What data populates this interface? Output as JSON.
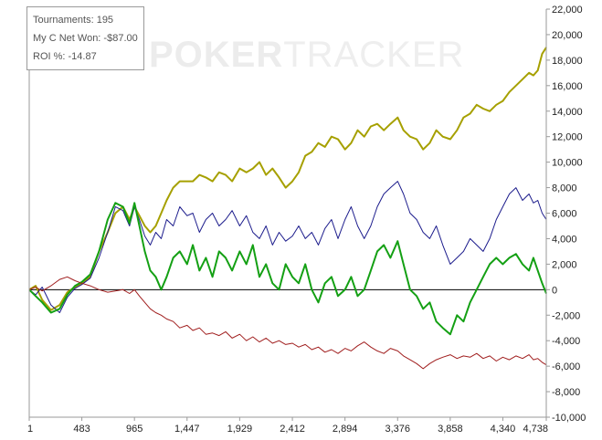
{
  "watermark": {
    "brand_bold": "POKER",
    "brand_light": "TRACKER"
  },
  "info": {
    "tournaments": "Tournaments: 195",
    "net_won": "My C Net Won: -$87.00",
    "roi": "ROI %: -14.87"
  },
  "colors": {
    "olive": "#a6a000",
    "navy": "#1c1c8c",
    "green": "#14a014",
    "darkred": "#a01e1e",
    "zero_line": "#000000",
    "axis": "#9a9a9a"
  },
  "chart_data": {
    "type": "line",
    "xlim": [
      1,
      4738
    ],
    "ylim": [
      -10000,
      22000
    ],
    "x_ticks": [
      1,
      483,
      965,
      1447,
      1929,
      2412,
      2894,
      3376,
      3858,
      4340,
      4738
    ],
    "x_tick_labels": [
      "1",
      "483",
      "965",
      "1,447",
      "1,929",
      "2,412",
      "2,894",
      "3,376",
      "3,858",
      "4,340",
      "4,738"
    ],
    "y_ticks": [
      -10000,
      -8000,
      -6000,
      -4000,
      -2000,
      0,
      2000,
      4000,
      6000,
      8000,
      10000,
      12000,
      14000,
      16000,
      18000,
      20000,
      22000
    ],
    "y_tick_labels": [
      "-10,000",
      "-8,000",
      "-6,000",
      "-4,000",
      "-2,000",
      "0",
      "2,000",
      "4,000",
      "6,000",
      "8,000",
      "10,000",
      "12,000",
      "14,000",
      "16,000",
      "18,000",
      "20,000",
      "22,000"
    ],
    "legend": "top-left",
    "series": [
      {
        "color": "#a6a000",
        "x": [
          1,
          60,
          120,
          200,
          280,
          350,
          420,
          483,
          560,
          640,
          720,
          790,
          860,
          920,
          965,
          1010,
          1060,
          1110,
          1160,
          1210,
          1260,
          1320,
          1380,
          1447,
          1500,
          1560,
          1620,
          1680,
          1740,
          1800,
          1860,
          1929,
          1990,
          2050,
          2110,
          2170,
          2230,
          2290,
          2350,
          2412,
          2470,
          2530,
          2590,
          2650,
          2710,
          2770,
          2830,
          2894,
          2950,
          3010,
          3070,
          3130,
          3190,
          3250,
          3310,
          3376,
          3430,
          3490,
          3550,
          3610,
          3670,
          3730,
          3790,
          3858,
          3920,
          3980,
          4040,
          4100,
          4160,
          4220,
          4280,
          4340,
          4400,
          4460,
          4520,
          4580,
          4620,
          4660,
          4700,
          4738
        ],
        "y": [
          0,
          300,
          -800,
          -1600,
          -1200,
          -200,
          200,
          500,
          1000,
          3000,
          4500,
          6000,
          6500,
          5500,
          6500,
          5800,
          5000,
          4500,
          5000,
          6000,
          7000,
          8000,
          8500,
          8500,
          8500,
          9000,
          8800,
          8500,
          9200,
          9000,
          8500,
          9500,
          9200,
          9500,
          10000,
          9000,
          9500,
          8800,
          8000,
          8500,
          9200,
          10500,
          10800,
          11500,
          11200,
          12000,
          11800,
          11000,
          11500,
          12500,
          12000,
          12800,
          13000,
          12500,
          13000,
          13500,
          12500,
          12000,
          11800,
          11000,
          11500,
          12500,
          12000,
          11800,
          12500,
          13500,
          13800,
          14500,
          14200,
          14000,
          14500,
          14800,
          15500,
          16000,
          16500,
          17000,
          16800,
          17200,
          18500,
          19000
        ]
      },
      {
        "color": "#1c1c8c",
        "x": [
          1,
          60,
          120,
          200,
          280,
          350,
          420,
          483,
          560,
          640,
          720,
          790,
          860,
          920,
          965,
          1010,
          1060,
          1110,
          1160,
          1210,
          1260,
          1320,
          1380,
          1447,
          1500,
          1560,
          1620,
          1680,
          1740,
          1800,
          1860,
          1929,
          1990,
          2050,
          2110,
          2170,
          2230,
          2290,
          2350,
          2412,
          2470,
          2530,
          2590,
          2650,
          2710,
          2770,
          2830,
          2894,
          2950,
          3010,
          3070,
          3130,
          3190,
          3250,
          3310,
          3376,
          3430,
          3490,
          3550,
          3610,
          3670,
          3730,
          3790,
          3858,
          3920,
          3980,
          4040,
          4100,
          4160,
          4220,
          4280,
          4340,
          4400,
          4460,
          4520,
          4580,
          4620,
          4660,
          4700,
          4738
        ],
        "y": [
          0,
          -400,
          200,
          -1200,
          -1800,
          -600,
          100,
          400,
          900,
          2500,
          4500,
          6500,
          6200,
          5000,
          6500,
          5500,
          4200,
          3500,
          4500,
          4000,
          5500,
          5000,
          6500,
          5800,
          6000,
          4500,
          5500,
          6000,
          5000,
          5500,
          6200,
          5000,
          5800,
          4500,
          4000,
          5000,
          3500,
          4500,
          3800,
          4200,
          5000,
          4000,
          4500,
          3500,
          4800,
          5500,
          4000,
          5500,
          6500,
          5000,
          4000,
          5000,
          6500,
          7500,
          8000,
          8500,
          7500,
          6000,
          5500,
          4500,
          4000,
          5000,
          3500,
          2000,
          2500,
          3000,
          4000,
          3500,
          3000,
          4000,
          5500,
          6500,
          7500,
          8000,
          7000,
          7500,
          6800,
          7000,
          6000,
          5500
        ]
      },
      {
        "color": "#14a014",
        "x": [
          1,
          60,
          120,
          200,
          280,
          350,
          420,
          483,
          560,
          640,
          720,
          790,
          860,
          920,
          965,
          1010,
          1060,
          1110,
          1160,
          1210,
          1260,
          1320,
          1380,
          1447,
          1500,
          1560,
          1620,
          1680,
          1740,
          1800,
          1860,
          1929,
          1990,
          2050,
          2110,
          2170,
          2230,
          2290,
          2350,
          2412,
          2470,
          2530,
          2590,
          2650,
          2710,
          2770,
          2830,
          2894,
          2950,
          3010,
          3070,
          3130,
          3190,
          3250,
          3310,
          3376,
          3430,
          3490,
          3550,
          3610,
          3670,
          3730,
          3790,
          3858,
          3920,
          3980,
          4040,
          4100,
          4160,
          4220,
          4280,
          4340,
          4400,
          4460,
          4520,
          4580,
          4620,
          4660,
          4700,
          4738
        ],
        "y": [
          0,
          -500,
          -1000,
          -1800,
          -1500,
          -400,
          300,
          600,
          1200,
          3000,
          5500,
          6800,
          6500,
          5200,
          6800,
          5000,
          3000,
          1500,
          1000,
          0,
          1000,
          2500,
          3000,
          2000,
          3500,
          1500,
          2500,
          1000,
          3000,
          2500,
          1500,
          3000,
          2000,
          3500,
          1000,
          2000,
          500,
          0,
          2000,
          1000,
          500,
          2000,
          0,
          -1000,
          500,
          1000,
          -500,
          0,
          1000,
          -500,
          0,
          1500,
          3000,
          3500,
          2500,
          3800,
          2000,
          0,
          -500,
          -1500,
          -1000,
          -2500,
          -3000,
          -3500,
          -2000,
          -2500,
          -1000,
          0,
          1000,
          2000,
          2500,
          2000,
          2500,
          2800,
          2000,
          1500,
          2500,
          1500,
          500,
          -300
        ]
      },
      {
        "color": "#a01e1e",
        "x": [
          1,
          60,
          120,
          200,
          280,
          350,
          420,
          483,
          560,
          640,
          720,
          790,
          860,
          920,
          965,
          1010,
          1060,
          1110,
          1160,
          1210,
          1260,
          1320,
          1380,
          1447,
          1500,
          1560,
          1620,
          1680,
          1740,
          1800,
          1860,
          1929,
          1990,
          2050,
          2110,
          2170,
          2230,
          2290,
          2350,
          2412,
          2470,
          2530,
          2590,
          2650,
          2710,
          2770,
          2830,
          2894,
          2950,
          3010,
          3070,
          3130,
          3190,
          3250,
          3310,
          3376,
          3430,
          3490,
          3550,
          3610,
          3670,
          3730,
          3790,
          3858,
          3920,
          3980,
          4040,
          4100,
          4160,
          4220,
          4280,
          4340,
          4400,
          4460,
          4520,
          4580,
          4620,
          4660,
          4700,
          4738
        ],
        "y": [
          0,
          200,
          -100,
          300,
          800,
          1000,
          700,
          500,
          300,
          0,
          -200,
          -100,
          0,
          -300,
          0,
          -500,
          -1000,
          -1500,
          -1800,
          -2000,
          -2300,
          -2500,
          -3000,
          -2800,
          -3200,
          -3000,
          -3500,
          -3400,
          -3600,
          -3300,
          -3800,
          -3500,
          -4000,
          -3700,
          -4100,
          -3800,
          -4200,
          -4000,
          -4300,
          -4200,
          -4500,
          -4300,
          -4700,
          -4500,
          -4900,
          -4700,
          -5000,
          -4600,
          -4800,
          -4400,
          -4100,
          -4500,
          -4800,
          -5000,
          -4600,
          -4800,
          -5200,
          -5500,
          -5800,
          -6200,
          -5800,
          -5500,
          -5300,
          -5100,
          -5400,
          -5200,
          -5300,
          -5000,
          -5400,
          -5200,
          -5600,
          -5300,
          -5500,
          -5200,
          -5400,
          -5100,
          -5500,
          -5400,
          -5700,
          -5900
        ]
      }
    ]
  }
}
